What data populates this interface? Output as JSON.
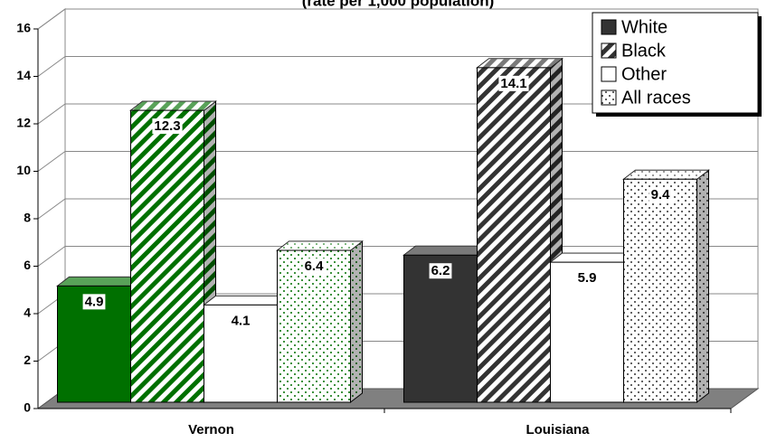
{
  "chart_data": {
    "type": "bar3d",
    "title": "(rate per 1,000 population)",
    "categories": [
      "Vernon",
      "Louisiana"
    ],
    "category_colors": [
      "#007000",
      "#333333"
    ],
    "series": [
      {
        "name": "White",
        "pattern": "solid",
        "values": [
          4.9,
          6.2
        ]
      },
      {
        "name": "Black",
        "pattern": "stripes",
        "values": [
          12.3,
          14.1
        ]
      },
      {
        "name": "Other",
        "pattern": "none",
        "values": [
          4.1,
          5.9
        ]
      },
      {
        "name": "All races",
        "pattern": "dots",
        "values": [
          6.4,
          9.4
        ]
      }
    ],
    "ylim": [
      0,
      16
    ],
    "yticks": [
      0,
      2,
      4,
      6,
      8,
      10,
      12,
      14,
      16
    ],
    "grid": true,
    "legend": "top-right"
  }
}
